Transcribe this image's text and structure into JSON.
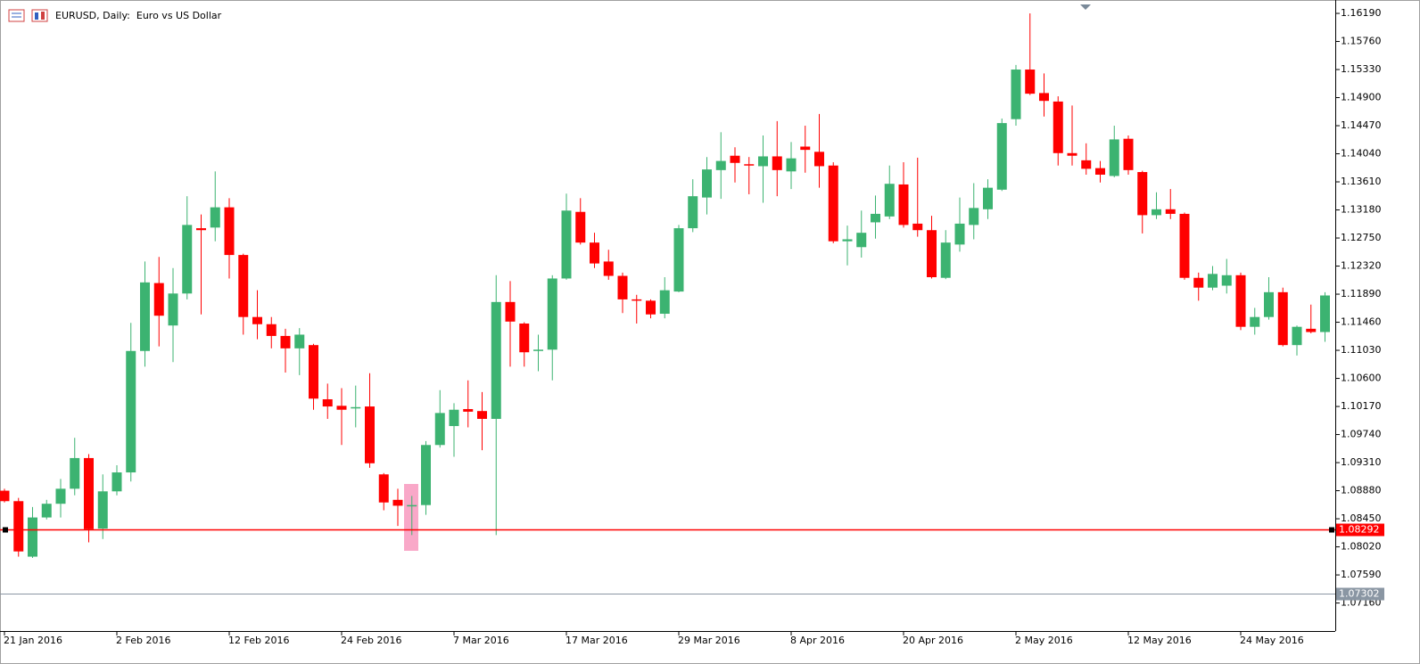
{
  "chart_data": {
    "type": "candlestick",
    "title": "EURUSD, Daily:  Euro vs US Dollar",
    "categories": [
      "21 Jan 2016",
      null,
      null,
      null,
      null,
      null,
      null,
      null,
      "2 Feb 2016",
      null,
      null,
      null,
      null,
      null,
      null,
      null,
      "12 Feb 2016",
      null,
      null,
      null,
      null,
      null,
      null,
      null,
      "24 Feb 2016",
      null,
      null,
      null,
      null,
      null,
      null,
      null,
      "7 Mar 2016",
      null,
      null,
      null,
      null,
      null,
      null,
      null,
      "17 Mar 2016",
      null,
      null,
      null,
      null,
      null,
      null,
      null,
      "29 Mar 2016",
      null,
      null,
      null,
      null,
      null,
      null,
      null,
      "8 Apr 2016",
      null,
      null,
      null,
      null,
      null,
      null,
      null,
      "20 Apr 2016",
      null,
      null,
      null,
      null,
      null,
      null,
      null,
      "2 May 2016",
      null,
      null,
      null,
      null,
      null,
      null,
      null,
      "12 May 2016",
      null,
      null,
      null,
      null,
      null,
      null,
      null,
      "24 May 2016",
      null,
      null,
      null,
      null,
      null,
      null
    ],
    "open": [
      1.0888,
      1.0872,
      1.0787,
      1.0847,
      1.0868,
      1.0891,
      1.0938,
      1.083,
      1.0887,
      1.0916,
      1.1102,
      1.1206,
      1.1141,
      1.119,
      1.129,
      1.1291,
      1.1322,
      1.1249,
      1.1154,
      1.1143,
      1.1125,
      1.1106,
      1.1111,
      1.1028,
      1.1018,
      1.1014,
      1.1017,
      1.0913,
      1.0874,
      1.0865,
      1.0866,
      1.0958,
      1.0987,
      1.1013,
      1.101,
      1.0998,
      1.1177,
      1.1144,
      1.1102,
      1.1104,
      1.1213,
      1.1315,
      1.1268,
      1.1239,
      1.1217,
      1.1181,
      1.1179,
      1.1159,
      1.1193,
      1.129,
      1.1337,
      1.1379,
      1.1401,
      1.1388,
      1.1385,
      1.14,
      1.1377,
      1.1415,
      1.1407,
      1.1386,
      1.127,
      1.1261,
      1.1299,
      1.1308,
      1.1357,
      1.1297,
      1.1287,
      1.1214,
      1.1265,
      1.1295,
      1.1319,
      1.1349,
      1.1457,
      1.1533,
      1.1497,
      1.1484,
      1.1405,
      1.1394,
      1.1382,
      1.137,
      1.1427,
      1.1376,
      1.131,
      1.1319,
      1.1312,
      1.1214,
      1.1199,
      1.1202,
      1.1218,
      1.1139,
      1.1154,
      1.1192,
      1.1111,
      1.1136,
      1.1131
    ],
    "high": [
      1.0891,
      1.0877,
      1.0863,
      1.0874,
      1.0906,
      1.0969,
      1.0944,
      1.0913,
      1.0927,
      1.1145,
      1.1239,
      1.1246,
      1.1229,
      1.1339,
      1.1311,
      1.1377,
      1.1336,
      1.1251,
      1.1195,
      1.1154,
      1.1136,
      1.1137,
      1.1113,
      1.1052,
      1.1045,
      1.1049,
      1.1068,
      1.0915,
      1.0891,
      1.088,
      1.0964,
      1.1042,
      1.1022,
      1.1057,
      1.1039,
      1.1218,
      1.1209,
      1.1146,
      1.1127,
      1.1218,
      1.1343,
      1.1336,
      1.1283,
      1.1257,
      1.1222,
      1.1188,
      1.1181,
      1.1215,
      1.1295,
      1.1365,
      1.1399,
      1.1437,
      1.1414,
      1.1399,
      1.1432,
      1.1454,
      1.1422,
      1.1447,
      1.1465,
      1.1391,
      1.1294,
      1.1317,
      1.134,
      1.1386,
      1.1391,
      1.1398,
      1.1309,
      1.1287,
      1.1337,
      1.1359,
      1.1365,
      1.1458,
      1.154,
      1.1619,
      1.1527,
      1.1492,
      1.1478,
      1.142,
      1.1393,
      1.1447,
      1.1432,
      1.1378,
      1.1345,
      1.135,
      1.1314,
      1.1222,
      1.1232,
      1.1243,
      1.1222,
      1.1168,
      1.1215,
      1.1199,
      1.1141,
      1.1173,
      1.1192
    ],
    "low": [
      1.087,
      1.0787,
      1.0785,
      1.0844,
      1.0847,
      1.0881,
      1.0809,
      1.0814,
      1.0881,
      1.0902,
      1.1078,
      1.1109,
      1.1085,
      1.1181,
      1.1158,
      1.127,
      1.1213,
      1.1127,
      1.112,
      1.1106,
      1.1069,
      1.1065,
      1.1012,
      1.0998,
      1.0958,
      1.0985,
      1.0923,
      1.0858,
      1.0834,
      1.082,
      1.0851,
      1.0954,
      1.094,
      1.0985,
      1.095,
      1.082,
      1.1078,
      1.1078,
      1.1071,
      1.1057,
      1.1211,
      1.1265,
      1.1229,
      1.1211,
      1.116,
      1.1144,
      1.1152,
      1.1152,
      1.1192,
      1.1284,
      1.1311,
      1.1335,
      1.136,
      1.1342,
      1.1329,
      1.1339,
      1.135,
      1.1375,
      1.1352,
      1.1267,
      1.1233,
      1.1245,
      1.1274,
      1.1304,
      1.1291,
      1.1277,
      1.1213,
      1.1212,
      1.1254,
      1.1273,
      1.1304,
      1.1347,
      1.1447,
      1.1494,
      1.1461,
      1.1386,
      1.1386,
      1.1372,
      1.136,
      1.1368,
      1.1372,
      1.1282,
      1.1304,
      1.1304,
      1.1211,
      1.1179,
      1.1195,
      1.119,
      1.1134,
      1.1127,
      1.115,
      1.1109,
      1.1095,
      1.1129,
      1.1116
    ],
    "close": [
      1.0872,
      1.0795,
      1.0847,
      1.0868,
      1.0891,
      1.0938,
      1.0829,
      1.0887,
      1.0916,
      1.1102,
      1.1207,
      1.1156,
      1.119,
      1.1295,
      1.1287,
      1.1322,
      1.1249,
      1.1154,
      1.1143,
      1.1125,
      1.1106,
      1.1127,
      1.1029,
      1.1017,
      1.1012,
      1.1016,
      1.093,
      1.087,
      1.0865,
      1.0866,
      1.0958,
      1.1007,
      1.1012,
      1.1009,
      1.0998,
      1.1177,
      1.1147,
      1.11,
      1.1104,
      1.1213,
      1.1317,
      1.1268,
      1.1236,
      1.1217,
      1.1181,
      1.1179,
      1.1158,
      1.1195,
      1.129,
      1.1339,
      1.138,
      1.1393,
      1.139,
      1.1386,
      1.14,
      1.1379,
      1.1397,
      1.141,
      1.1385,
      1.127,
      1.1273,
      1.1283,
      1.1312,
      1.1358,
      1.1295,
      1.1287,
      1.1215,
      1.1268,
      1.1297,
      1.1321,
      1.1352,
      1.1451,
      1.1533,
      1.1496,
      1.1485,
      1.1405,
      1.1401,
      1.1381,
      1.1372,
      1.1426,
      1.1379,
      1.131,
      1.1319,
      1.1312,
      1.1214,
      1.1199,
      1.122,
      1.1218,
      1.1139,
      1.1154,
      1.1192,
      1.1111,
      1.1139,
      1.1131,
      1.1187
    ],
    "up_color": "#3cb371",
    "down_color": "#ff0000",
    "ylim": [
      1.06731,
      1.16395
    ],
    "yticks": [
      {
        "value": 1.1619,
        "label": "1.16190"
      },
      {
        "value": 1.1576,
        "label": "1.15760"
      },
      {
        "value": 1.1533,
        "label": "1.15330"
      },
      {
        "value": 1.149,
        "label": "1.14900"
      },
      {
        "value": 1.1447,
        "label": "1.14470"
      },
      {
        "value": 1.1404,
        "label": "1.14040"
      },
      {
        "value": 1.1361,
        "label": "1.13610"
      },
      {
        "value": 1.1318,
        "label": "1.13180"
      },
      {
        "value": 1.1275,
        "label": "1.12750"
      },
      {
        "value": 1.1232,
        "label": "1.12320"
      },
      {
        "value": 1.1189,
        "label": "1.11890"
      },
      {
        "value": 1.1146,
        "label": "1.11460"
      },
      {
        "value": 1.1103,
        "label": "1.11030"
      },
      {
        "value": 1.106,
        "label": "1.10600"
      },
      {
        "value": 1.1017,
        "label": "1.10170"
      },
      {
        "value": 1.0974,
        "label": "1.09740"
      },
      {
        "value": 1.0931,
        "label": "1.09310"
      },
      {
        "value": 1.0888,
        "label": "1.08880"
      },
      {
        "value": 1.0845,
        "label": "1.08450"
      },
      {
        "value": 1.0802,
        "label": "1.08020"
      },
      {
        "value": 1.0759,
        "label": "1.07590"
      },
      {
        "value": 1.0716,
        "label": "1.07160"
      }
    ],
    "price_lines": [
      1.08292,
      1.07302
    ],
    "price_line_colors": [
      "#ff0000",
      "#8a96a3"
    ]
  }
}
